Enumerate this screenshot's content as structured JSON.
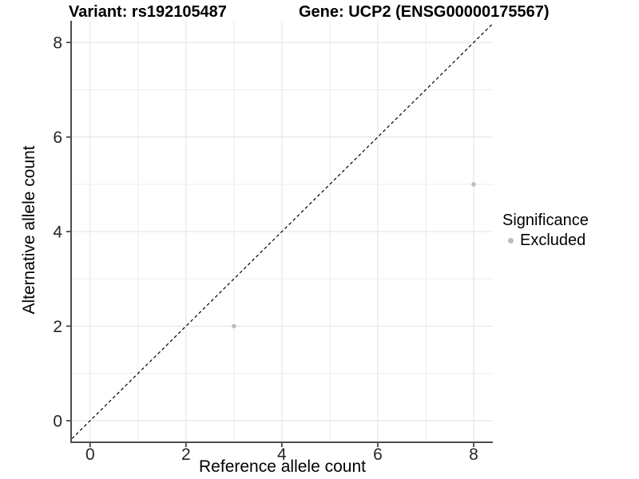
{
  "chart_data": {
    "type": "scatter",
    "title_left": "Variant: rs192105487",
    "title_right": "Gene: UCP2 (ENSG00000175567)",
    "xlabel": "Reference allele count",
    "ylabel": "Alternative allele count",
    "xlim": [
      -0.38,
      8.4
    ],
    "ylim": [
      -0.44,
      8.46
    ],
    "x_ticks": [
      0,
      2,
      4,
      6,
      8
    ],
    "y_ticks": [
      0,
      2,
      4,
      6,
      8
    ],
    "x_minor_gridlines": [
      1,
      3,
      5,
      7
    ],
    "y_minor_gridlines": [
      1,
      3,
      5,
      7
    ],
    "grid": true,
    "identity_line": {
      "style": "dashed",
      "slope": 1,
      "intercept": 0,
      "color": "#000000"
    },
    "series": [
      {
        "name": "Excluded",
        "color": "#bdbdbd",
        "points": [
          {
            "x": 3,
            "y": 2
          },
          {
            "x": 8,
            "y": 5
          }
        ]
      }
    ],
    "legend": {
      "title": "Significance",
      "position": "right",
      "items": [
        {
          "label": "Excluded",
          "color": "#bdbdbd"
        }
      ]
    },
    "colors": {
      "panel_background": "#ffffff",
      "grid_major": "#e4e4e4",
      "grid_minor": "#ededed",
      "axis_line": "#4d4d4d",
      "tick_mark": "#333333",
      "tick_label": "#262626"
    }
  }
}
